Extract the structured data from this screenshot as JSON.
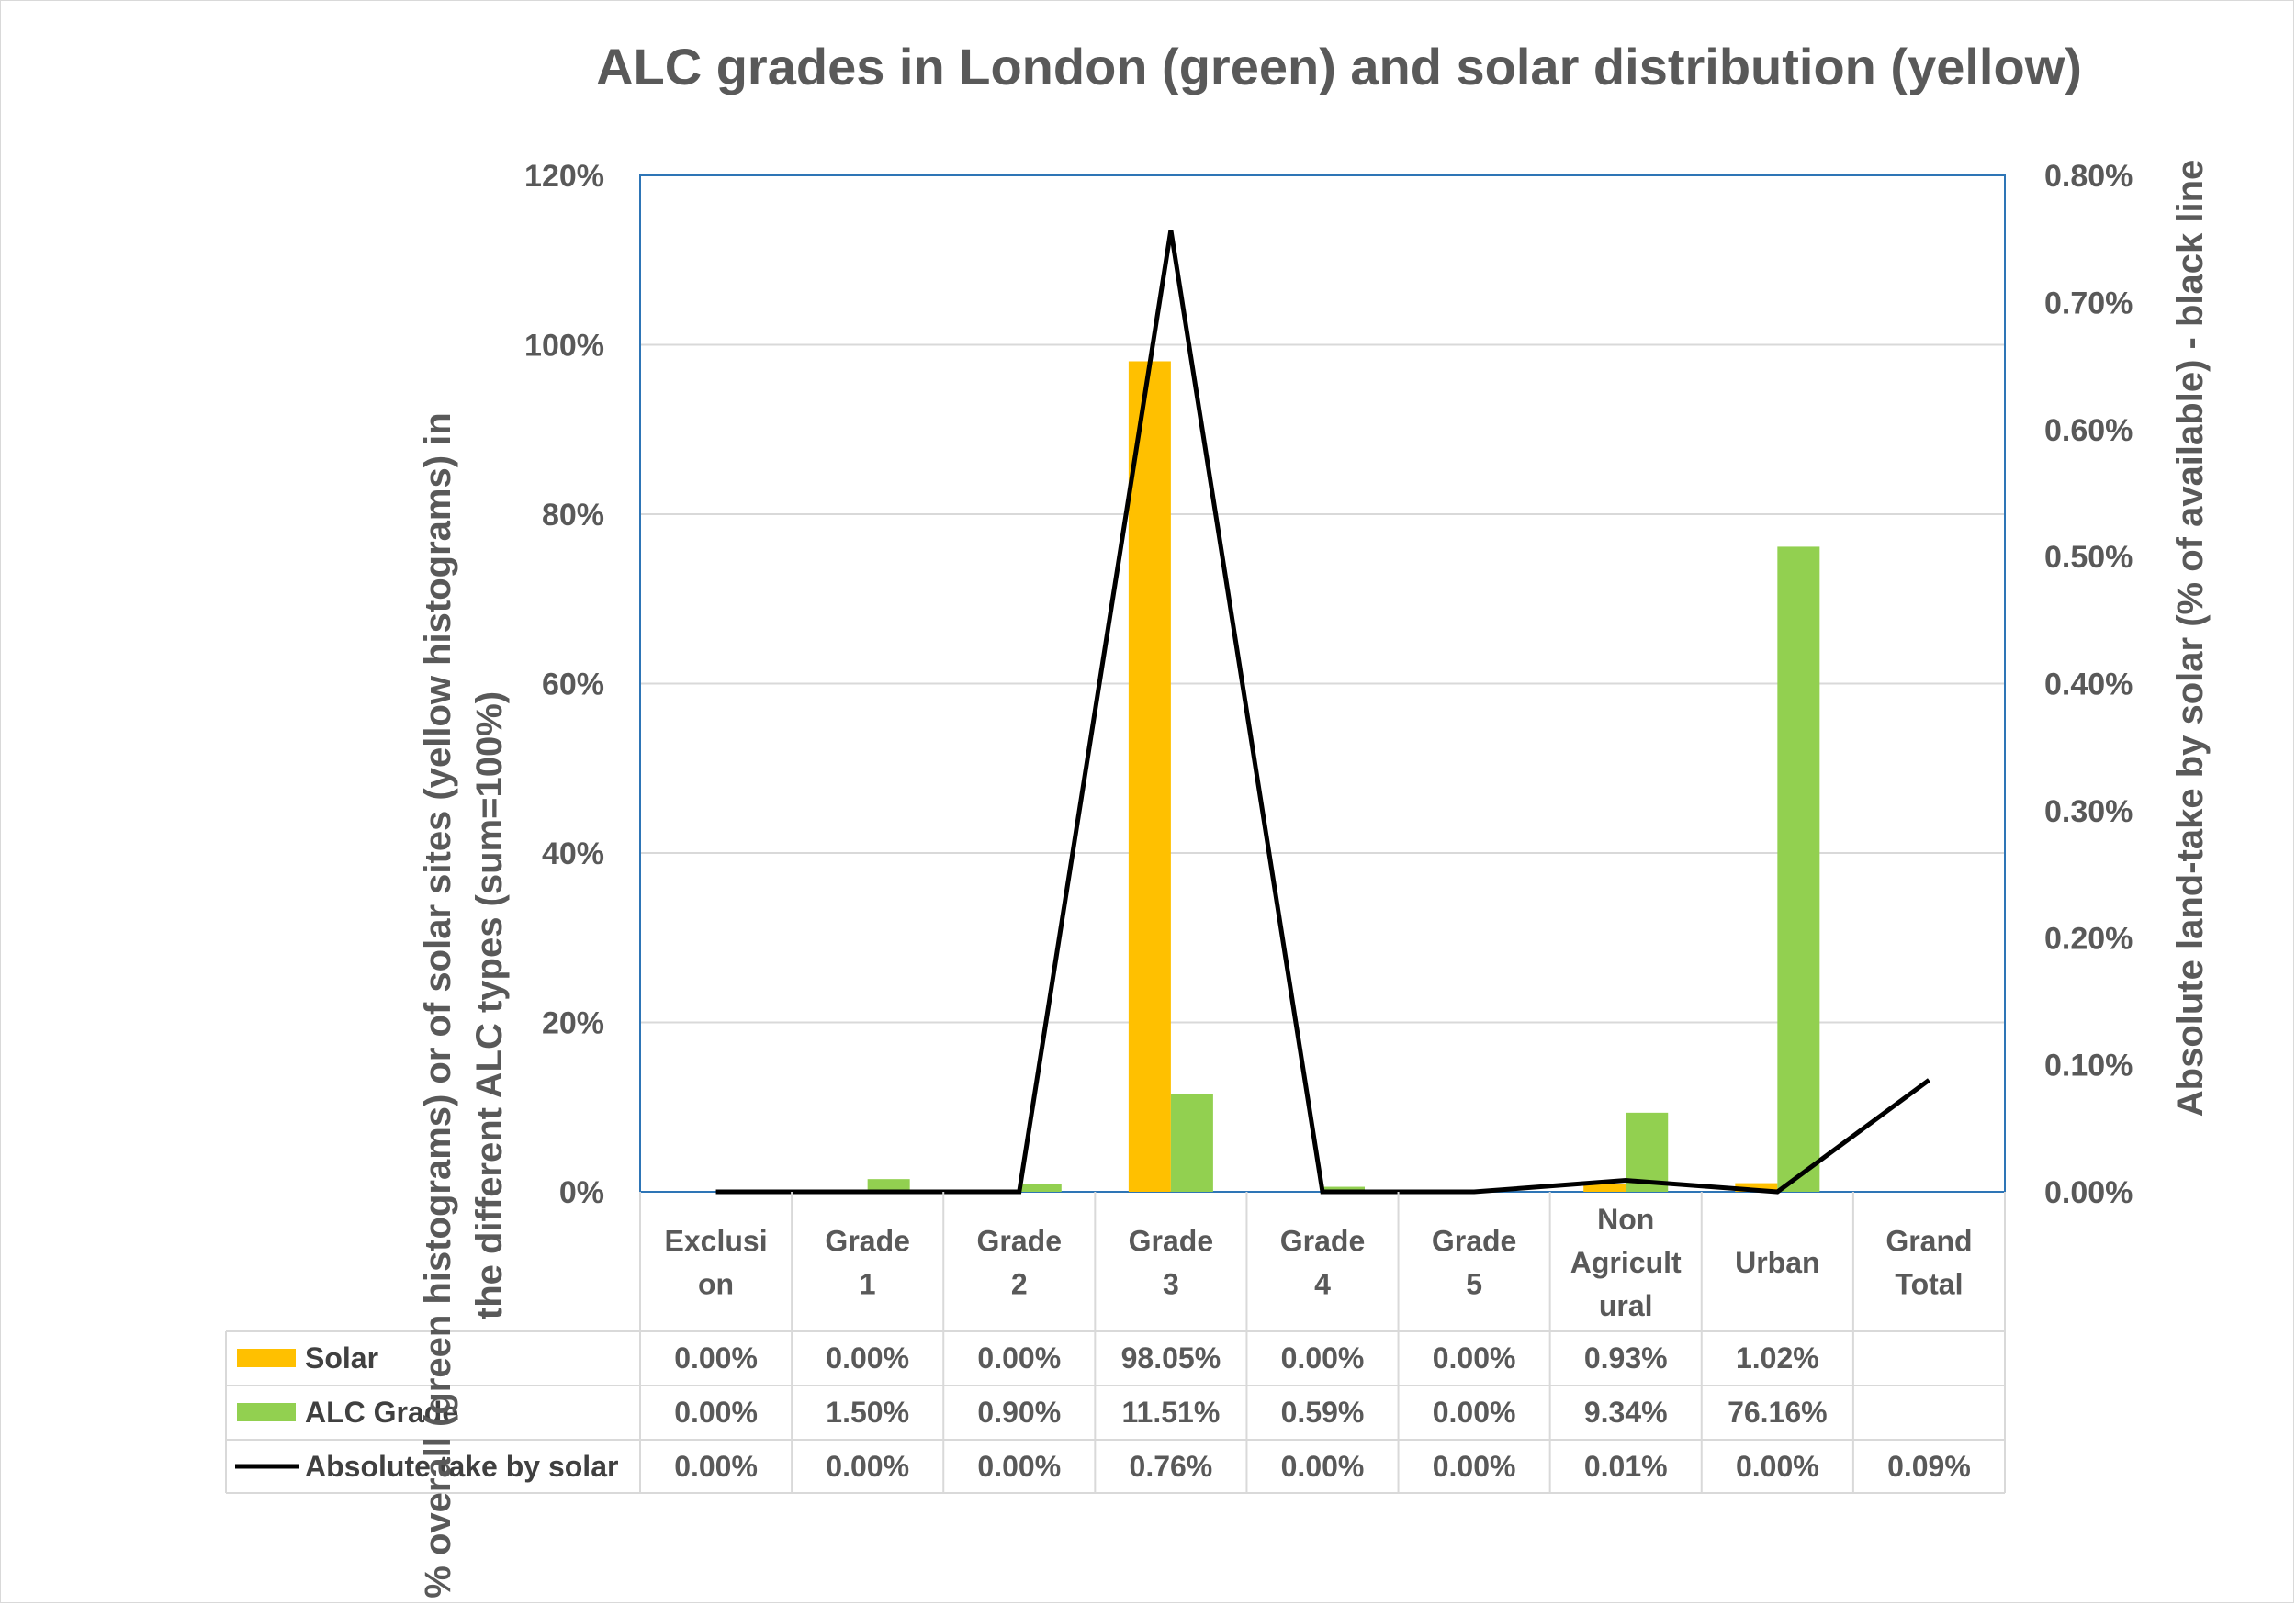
{
  "chart_data": {
    "type": "bar",
    "title": "ALC grades in London (green) and solar distribution (yellow)",
    "ylabel_line1": "% overall (green histograms) or of solar sites (yellow histograms) in",
    "ylabel_line2": "the different ALC types (sum=100%)",
    "y2label": "Absolute land-take by solar (% of available) - black line",
    "ylim": [
      0,
      120
    ],
    "y2lim": [
      0,
      0.8
    ],
    "y_ticks": [
      "0%",
      "20%",
      "40%",
      "60%",
      "80%",
      "100%",
      "120%"
    ],
    "y2_ticks": [
      "0.00%",
      "0.10%",
      "0.20%",
      "0.30%",
      "0.40%",
      "0.50%",
      "0.60%",
      "0.70%",
      "0.80%"
    ],
    "categories": [
      [
        "Exclusi",
        "on"
      ],
      [
        "Grade",
        "1"
      ],
      [
        "Grade",
        "2"
      ],
      [
        "Grade",
        "3"
      ],
      [
        "Grade",
        "4"
      ],
      [
        "Grade",
        "5"
      ],
      [
        "Non",
        "Agricult",
        "ural"
      ],
      [
        "Urban"
      ],
      [
        "Grand",
        "Total"
      ]
    ],
    "series": [
      {
        "name": "Solar",
        "kind": "bar",
        "axis": "left",
        "color": "#FFC000",
        "values": [
          0.0,
          0.0,
          0.0,
          98.05,
          0.0,
          0.0,
          0.93,
          1.02,
          null
        ],
        "labels": [
          "0.00%",
          "0.00%",
          "0.00%",
          "98.05%",
          "0.00%",
          "0.00%",
          "0.93%",
          "1.02%",
          ""
        ]
      },
      {
        "name": "ALC Grade",
        "kind": "bar",
        "axis": "left",
        "color": "#92D050",
        "values": [
          0.0,
          1.5,
          0.9,
          11.51,
          0.59,
          0.0,
          9.34,
          76.16,
          null
        ],
        "labels": [
          "0.00%",
          "1.50%",
          "0.90%",
          "11.51%",
          "0.59%",
          "0.00%",
          "9.34%",
          "76.16%",
          ""
        ]
      },
      {
        "name": "Absolute take by solar",
        "kind": "line",
        "axis": "right",
        "color": "#000000",
        "values": [
          0.0,
          0.0,
          0.0,
          0.757,
          0.0,
          0.0,
          0.009,
          0.0,
          0.088
        ],
        "labels": [
          "0.00%",
          "0.00%",
          "0.00%",
          "0.76%",
          "0.00%",
          "0.00%",
          "0.01%",
          "0.00%",
          "0.09%"
        ]
      }
    ],
    "grid": true
  }
}
